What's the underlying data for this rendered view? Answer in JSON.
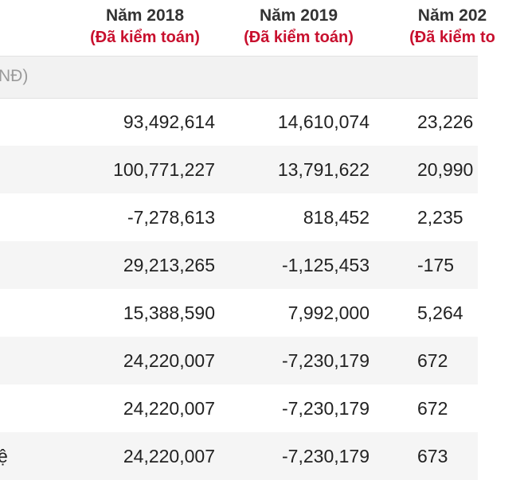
{
  "header": {
    "columns": [
      {
        "year": "Năm 2018",
        "status": "(Đã kiểm toán)"
      },
      {
        "year": "Năm 2019",
        "status": "(Đã kiểm toán)"
      },
      {
        "year": "Năm 202",
        "status": "(Đã kiểm to"
      }
    ]
  },
  "unit_label": "NĐ)",
  "rows": [
    {
      "label": "",
      "v2018": "93,492,614",
      "v2019": "14,610,074",
      "v2020": "23,226"
    },
    {
      "label": "",
      "v2018": "100,771,227",
      "v2019": "13,791,622",
      "v2020": "20,990"
    },
    {
      "label": "",
      "v2018": "-7,278,613",
      "v2019": "818,452",
      "v2020": "2,235"
    },
    {
      "label": "",
      "v2018": "29,213,265",
      "v2019": "-1,125,453",
      "v2020": "-175"
    },
    {
      "label": "",
      "v2018": "15,388,590",
      "v2019": "7,992,000",
      "v2020": "5,264"
    },
    {
      "label": "",
      "v2018": "24,220,007",
      "v2019": "-7,230,179",
      "v2020": "672"
    },
    {
      "label": "",
      "v2018": "24,220,007",
      "v2019": "-7,230,179",
      "v2020": "672"
    },
    {
      "label": "ệ",
      "v2018": "24,220,007",
      "v2019": "-7,230,179",
      "v2020": "673"
    }
  ],
  "colors": {
    "audit_text": "#c8102e",
    "header_text": "#333333",
    "unit_text": "#9a9a9a",
    "stripe": "#f5f5f5"
  }
}
